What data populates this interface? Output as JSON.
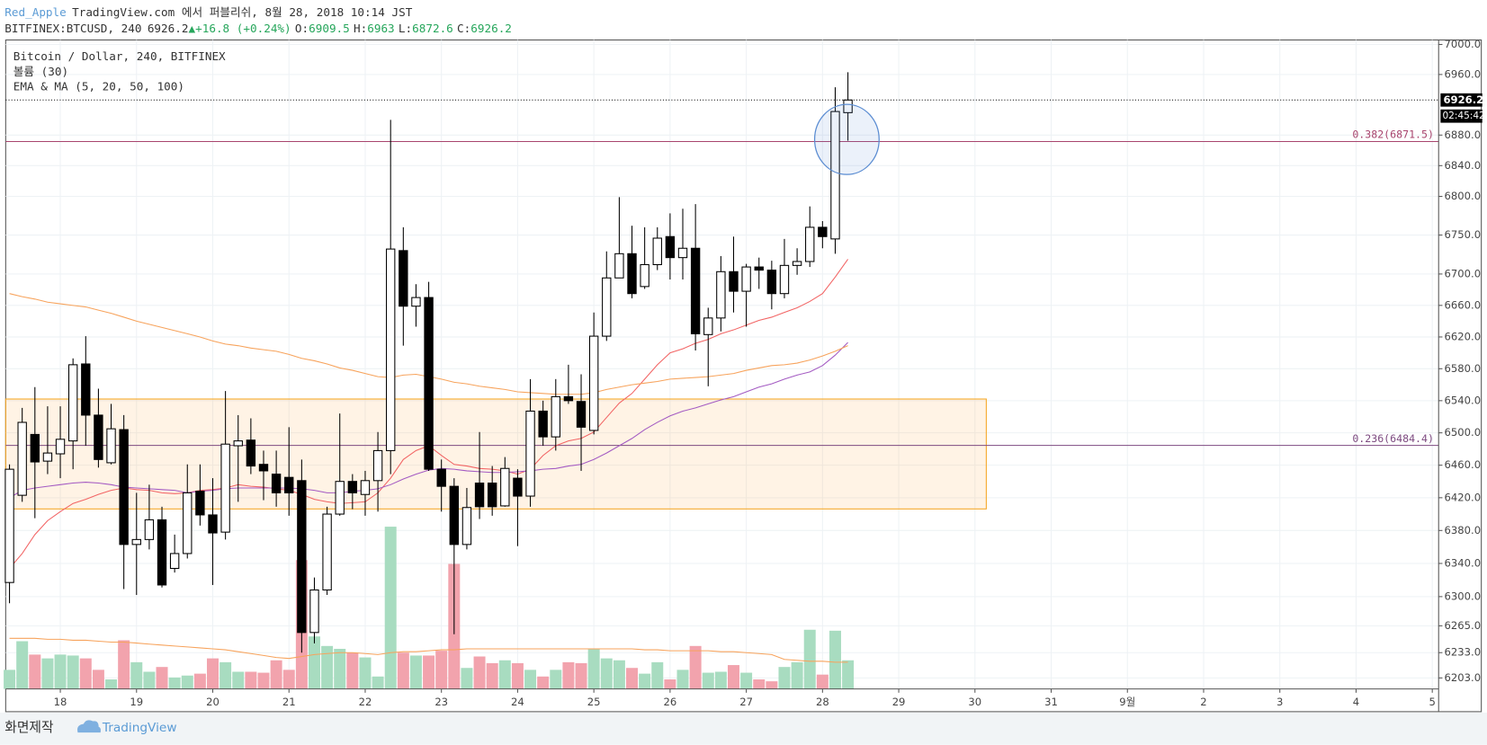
{
  "header": {
    "author": "Red_Apple",
    "published": "TradingView.com 에서 퍼블리쉬, 8월 28, 2018 10:14 JST",
    "symbol": "BITFINEX:BTCUSD, 240",
    "change_arrow": "▲",
    "change": "+16.8 (+0.24%)",
    "o_label": "O:",
    "h_label": "H:",
    "l_label": "L:",
    "c_label": "C:"
  },
  "chart_data": {
    "type": "candlestick",
    "legend": [
      "Bitcoin / Dollar, 240, BITFINEX",
      "볼륨 (30)",
      "EMA & MA (5, 20, 50, 100)"
    ],
    "open": [
      6317,
      6423,
      6498,
      6465,
      6474,
      6490,
      6586,
      6522,
      6463,
      6504,
      6363,
      6369,
      6393,
      6334,
      6352,
      6428,
      6399,
      6378,
      6484,
      6491,
      6461,
      6449,
      6445,
      6441,
      6257,
      6308,
      6400,
      6440,
      6424,
      6441,
      6478,
      6730,
      6659,
      6670,
      6455,
      6434,
      6363,
      6438,
      6438,
      6410,
      6444,
      6422,
      6527,
      6495,
      6545,
      6539,
      6503,
      6621,
      6695,
      6726,
      6684,
      6712,
      6748,
      6721,
      6733,
      6623,
      6644,
      6703,
      6678,
      6709,
      6705,
      6675,
      6711,
      6716,
      6760,
      6745,
      6909.5
    ],
    "high": [
      6461,
      6531,
      6557,
      6533,
      6533,
      6593,
      6621,
      6555,
      6536,
      6522,
      6426,
      6436,
      6409,
      6375,
      6461,
      6461,
      6444,
      6552,
      6522,
      6518,
      6478,
      6478,
      6507,
      6467,
      6323,
      6409,
      6524,
      6449,
      6453,
      6501,
      6900,
      6760,
      6687,
      6690,
      6467,
      6444,
      6432,
      6501,
      6459,
      6470,
      6455,
      6567,
      6540,
      6567,
      6585,
      6573,
      6651,
      6729,
      6799,
      6762,
      6760,
      6760,
      6778,
      6784,
      6790,
      6657,
      6723,
      6748,
      6713,
      6721,
      6717,
      6745,
      6733,
      6787,
      6768,
      6943,
      6963.0
    ],
    "low": [
      6292,
      6415,
      6395,
      6449,
      6444,
      6455,
      6484,
      6457,
      6461,
      6309,
      6302,
      6357,
      6311,
      6329,
      6346,
      6386,
      6314,
      6369,
      6415,
      6449,
      6417,
      6409,
      6398,
      6233,
      6244,
      6302,
      6398,
      6406,
      6398,
      6403,
      6449,
      6609,
      6633,
      6453,
      6403,
      6255,
      6357,
      6394,
      6398,
      6409,
      6361,
      6409,
      6484,
      6478,
      6536,
      6453,
      6498,
      6615,
      6695,
      6669,
      6681,
      6705,
      6693,
      6693,
      6603,
      6558,
      6627,
      6651,
      6633,
      6681,
      6655,
      6669,
      6699,
      6709,
      6733,
      6726,
      6872.6
    ],
    "close": [
      6455,
      6513,
      6464,
      6475,
      6492,
      6585,
      6522,
      6467,
      6505,
      6363,
      6369,
      6393,
      6314,
      6352,
      6426,
      6399,
      6377,
      6486,
      6490,
      6459,
      6453,
      6426,
      6426,
      6257,
      6308,
      6400,
      6440,
      6426,
      6441,
      6478,
      6732,
      6659,
      6670,
      6455,
      6434,
      6363,
      6408,
      6409,
      6409,
      6456,
      6422,
      6527,
      6495,
      6545,
      6540,
      6507,
      6621,
      6695,
      6726,
      6675,
      6712,
      6746,
      6721,
      6733,
      6624,
      6644,
      6703,
      6678,
      6709,
      6705,
      6675,
      6711,
      6716,
      6760,
      6748,
      6911,
      6926.2
    ],
    "up_color": "#ffffff",
    "down_color": "#000000",
    "volume": [
      20,
      50,
      36,
      32,
      36,
      35,
      32,
      20,
      10,
      51,
      28,
      18,
      23,
      12,
      14,
      16,
      32,
      28,
      18,
      18,
      17,
      30,
      20,
      135,
      55,
      45,
      42,
      38,
      33,
      13,
      170,
      38,
      35,
      35,
      40,
      131,
      22,
      34,
      27,
      30,
      27,
      20,
      13,
      20,
      28,
      27,
      42,
      32,
      30,
      22,
      16,
      28,
      10,
      20,
      45,
      17,
      18,
      25,
      17,
      10,
      8,
      23,
      28,
      62,
      15,
      61,
      30
    ],
    "volume_ma": [
      53,
      53,
      53,
      52,
      52,
      51,
      51,
      50,
      49,
      49,
      48,
      47,
      46,
      45,
      44,
      43,
      42,
      41,
      39,
      37,
      35,
      33,
      32,
      34,
      36,
      37,
      38,
      38,
      37,
      36,
      38,
      39,
      39,
      40,
      41,
      41,
      42,
      42,
      42,
      42,
      42,
      42,
      42,
      42,
      42,
      42,
      42,
      42,
      42,
      42,
      41,
      41,
      40,
      40,
      40,
      40,
      39,
      39,
      38,
      37,
      36,
      31,
      30,
      29,
      29,
      28,
      28
    ],
    "volume_up_color": "#a8dcc0",
    "volume_down_color": "#f2a3ad",
    "volume_ma_color": "#f7a35c",
    "series": [
      {
        "color": "#f26464",
        "values": [
          6334,
          6352,
          6375,
          6392,
          6403,
          6413,
          6418,
          6424,
          6429,
          6432,
          6430,
          6429,
          6426,
          6425,
          6426,
          6429,
          6430,
          6432,
          6436,
          6434,
          6433,
          6431,
          6429,
          6424,
          6418,
          6415,
          6413,
          6414,
          6415,
          6426,
          6444,
          6467,
          6478,
          6484,
          6472,
          6461,
          6459,
          6456,
          6455,
          6453,
          6449,
          6455,
          6472,
          6484,
          6490,
          6493,
          6501,
          6519,
          6537,
          6549,
          6567,
          6585,
          6600,
          6605,
          6612,
          6617,
          6624,
          6629,
          6635,
          6641,
          6645,
          6651,
          6657,
          6665,
          6675,
          6696,
          6719
        ]
      },
      {
        "color": "#a35ac2",
        "values": [
          6420,
          6429,
          6432,
          6434,
          6436,
          6438,
          6439,
          6438,
          6436,
          6433,
          6432,
          6431,
          6430,
          6429,
          6426,
          6428,
          6429,
          6431,
          6432,
          6432,
          6432,
          6432,
          6432,
          6431,
          6429,
          6426,
          6426,
          6428,
          6429,
          6431,
          6436,
          6443,
          6449,
          6454,
          6456,
          6455,
          6453,
          6452,
          6451,
          6451,
          6452,
          6453,
          6455,
          6456,
          6459,
          6461,
          6467,
          6475,
          6484,
          6493,
          6504,
          6513,
          6521,
          6527,
          6531,
          6536,
          6541,
          6545,
          6551,
          6557,
          6561,
          6567,
          6572,
          6576,
          6584,
          6597,
          6613
        ]
      },
      {
        "color": "#f7a35c",
        "values": [
          6675,
          6671,
          6668,
          6664,
          6662,
          6660,
          6658,
          6654,
          6650,
          6645,
          6640,
          6636,
          6632,
          6628,
          6624,
          6620,
          6615,
          6611,
          6609,
          6606,
          6604,
          6602,
          6598,
          6593,
          6590,
          6586,
          6581,
          6578,
          6574,
          6570,
          6569,
          6572,
          6573,
          6570,
          6567,
          6563,
          6561,
          6558,
          6556,
          6554,
          6551,
          6550,
          6549,
          6548,
          6548,
          6548,
          6550,
          6554,
          6557,
          6560,
          6562,
          6564,
          6567,
          6568,
          6569,
          6570,
          6572,
          6574,
          6578,
          6581,
          6584,
          6585,
          6587,
          6591,
          6596,
          6602,
          6609
        ]
      }
    ],
    "ylim": [
      6190,
      7006
    ],
    "log": true,
    "yticks": [
      {
        "value": 7000,
        "label": "7000.0"
      },
      {
        "value": 6960,
        "label": "6960.0"
      },
      {
        "value": 6880,
        "label": "6880.0"
      },
      {
        "value": 6840,
        "label": "6840.0"
      },
      {
        "value": 6800,
        "label": "6800.0"
      },
      {
        "value": 6750,
        "label": "6750.0"
      },
      {
        "value": 6700,
        "label": "6700.0"
      },
      {
        "value": 6660,
        "label": "6660.0"
      },
      {
        "value": 6620,
        "label": "6620.0"
      },
      {
        "value": 6580,
        "label": "6580.0"
      },
      {
        "value": 6540,
        "label": "6540.0"
      },
      {
        "value": 6500,
        "label": "6500.0"
      },
      {
        "value": 6460,
        "label": "6460.0"
      },
      {
        "value": 6420,
        "label": "6420.0"
      },
      {
        "value": 6380,
        "label": "6380.0"
      },
      {
        "value": 6340,
        "label": "6340.0"
      },
      {
        "value": 6300,
        "label": "6300.0"
      },
      {
        "value": 6265,
        "label": "6265.0"
      },
      {
        "value": 6233,
        "label": "6233.0"
      },
      {
        "value": 6203,
        "label": "6203.0"
      }
    ],
    "xlim": [
      -0.3,
      112.5
    ],
    "xticks": [
      {
        "value": 4,
        "label": "18"
      },
      {
        "value": 10,
        "label": "19"
      },
      {
        "value": 16,
        "label": "20"
      },
      {
        "value": 22,
        "label": "21"
      },
      {
        "value": 28,
        "label": "22"
      },
      {
        "value": 34,
        "label": "23"
      },
      {
        "value": 40,
        "label": "24"
      },
      {
        "value": 46,
        "label": "25"
      },
      {
        "value": 52,
        "label": "26"
      },
      {
        "value": 58,
        "label": "27"
      },
      {
        "value": 64,
        "label": "28"
      },
      {
        "value": 70,
        "label": "29"
      },
      {
        "value": 76,
        "label": "30"
      },
      {
        "value": 82,
        "label": "31"
      },
      {
        "value": 88,
        "label": "9월"
      },
      {
        "value": 94,
        "label": "2"
      },
      {
        "value": 100,
        "label": "3"
      },
      {
        "value": 106,
        "label": "4"
      },
      {
        "value": 112,
        "label": "5"
      }
    ],
    "grid": true,
    "levels": [
      {
        "value": 6871.5,
        "label": "0.382(6871.5)",
        "color": "#a8456e"
      },
      {
        "value": 6484.4,
        "label": "0.236(6484.4)",
        "color": "#7d4a80"
      }
    ],
    "countdown": "02:45:42"
  },
  "footer": {
    "credit": "화면제작",
    "brand": "TradingView"
  }
}
